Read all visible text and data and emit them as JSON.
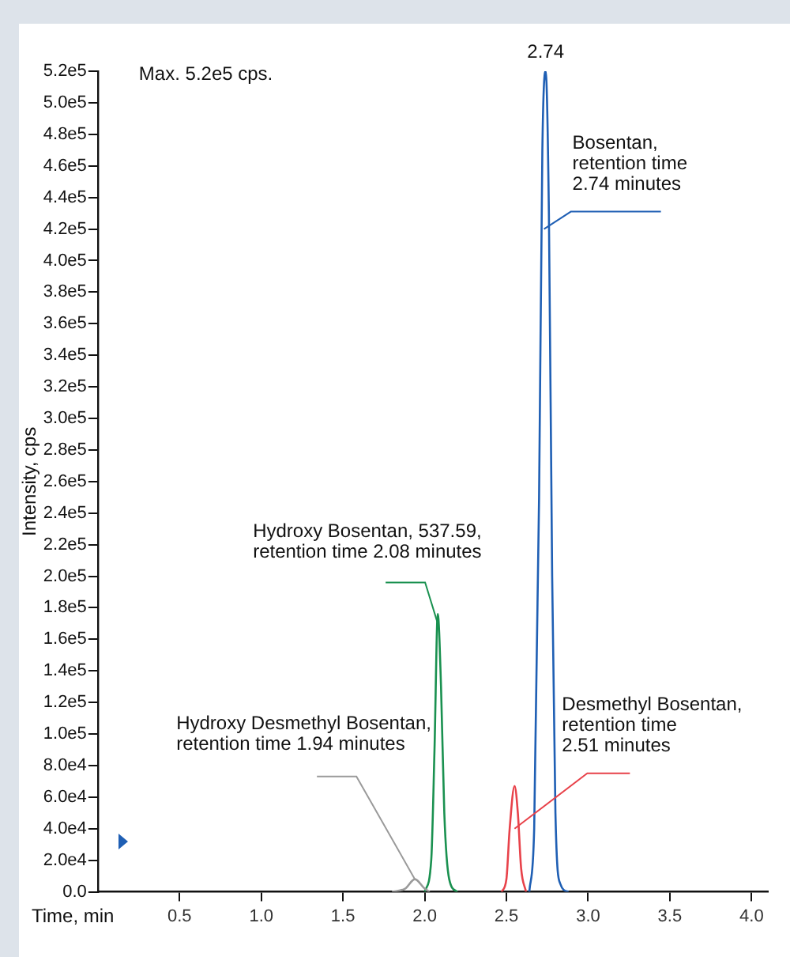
{
  "chart_data": {
    "type": "line",
    "xlabel": "Time, min",
    "ylabel": "Intensity, cps",
    "xlim": [
      0,
      4.1
    ],
    "ylim": [
      0,
      520000
    ],
    "xticks": [
      {
        "value": 0.5,
        "label": "0.5"
      },
      {
        "value": 1,
        "label": "1.0"
      },
      {
        "value": 1.5,
        "label": "1.5"
      },
      {
        "value": 2,
        "label": "2.0"
      },
      {
        "value": 2.5,
        "label": "2.5"
      },
      {
        "value": 3,
        "label": "3.0"
      },
      {
        "value": 3.5,
        "label": "3.5"
      },
      {
        "value": 4,
        "label": "4.0"
      }
    ],
    "yticks": [
      {
        "value": 0,
        "label": "0.0"
      },
      {
        "value": 20000,
        "label": "2.0e4"
      },
      {
        "value": 40000,
        "label": "4.0e4"
      },
      {
        "value": 60000,
        "label": "6.0e4"
      },
      {
        "value": 80000,
        "label": "8.0e4"
      },
      {
        "value": 100000,
        "label": "1.0e5"
      },
      {
        "value": 120000,
        "label": "1.2e5"
      },
      {
        "value": 140000,
        "label": "1.4e5"
      },
      {
        "value": 160000,
        "label": "1.6e5"
      },
      {
        "value": 180000,
        "label": "1.8e5"
      },
      {
        "value": 200000,
        "label": "2.0e5"
      },
      {
        "value": 220000,
        "label": "2.2e5"
      },
      {
        "value": 240000,
        "label": "2.4e5"
      },
      {
        "value": 260000,
        "label": "2.6e5"
      },
      {
        "value": 280000,
        "label": "2.8e5"
      },
      {
        "value": 300000,
        "label": "3.0e5"
      },
      {
        "value": 320000,
        "label": "3.2e5"
      },
      {
        "value": 340000,
        "label": "3.4e5"
      },
      {
        "value": 360000,
        "label": "3.6e5"
      },
      {
        "value": 380000,
        "label": "3.8e5"
      },
      {
        "value": 400000,
        "label": "4.0e5"
      },
      {
        "value": 420000,
        "label": "4.2e5"
      },
      {
        "value": 440000,
        "label": "4.4e5"
      },
      {
        "value": 460000,
        "label": "4.6e5"
      },
      {
        "value": 480000,
        "label": "4.8e5"
      },
      {
        "value": 500000,
        "label": "5.0e5"
      },
      {
        "value": 520000,
        "label": "5.2e5"
      }
    ],
    "series": [
      {
        "color": "#9a9a9a",
        "x": [
          1.8,
          1.88,
          1.94,
          2.0,
          2.03
        ],
        "values": [
          0,
          2000,
          8000,
          2000,
          0
        ]
      },
      {
        "color": "#1a9150",
        "x": [
          2.0,
          2.04,
          2.06,
          2.08,
          2.1,
          2.12,
          2.15,
          2.2
        ],
        "values": [
          0,
          20000,
          90000,
          176000,
          130000,
          50000,
          8000,
          0
        ]
      },
      {
        "color": "#e8424a",
        "x": [
          2.47,
          2.5,
          2.52,
          2.55,
          2.57,
          2.59,
          2.62
        ],
        "values": [
          0,
          8000,
          40000,
          67000,
          50000,
          15000,
          0
        ]
      },
      {
        "color": "#1f5fb4",
        "x": [
          2.64,
          2.67,
          2.7,
          2.72,
          2.74,
          2.76,
          2.78,
          2.8,
          2.83,
          2.88
        ],
        "values": [
          0,
          40000,
          250000,
          470000,
          520000,
          430000,
          200000,
          50000,
          5000,
          0
        ]
      }
    ],
    "annotations": [
      "Max. 5.2e5 cps.",
      {
        "text": "2.74",
        "x": 2.74,
        "y": 520000
      },
      {
        "text": "Bosentan,\nretention time\n2.74 minutes",
        "x": 2.73,
        "y": 420000
      },
      {
        "text": "Hydroxy Bosentan, 537.59,\nretention time 2.08 minutes",
        "x": 2.08,
        "y": 170000
      },
      {
        "text": "Desmethyl Bosentan,\nretention time\n2.51 minutes",
        "x": 2.55,
        "y": 40000
      },
      {
        "text": "Hydroxy Desmethyl Bosentan,\nretention time 1.94 minutes",
        "x": 1.94,
        "y": 8000
      }
    ]
  }
}
